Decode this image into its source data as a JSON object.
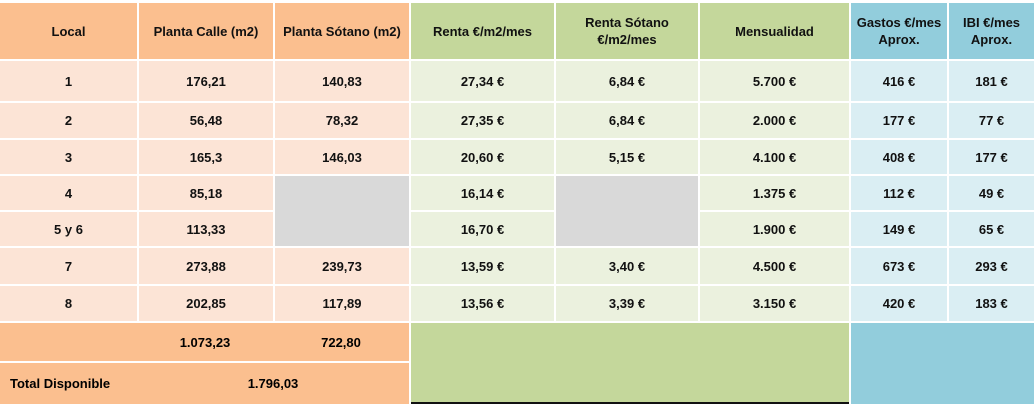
{
  "headers": [
    "Local",
    "Planta Calle (m2)",
    "Planta Sótano (m2)",
    "Renta €/m2/mes",
    "Renta Sótano €/m2/mes",
    "Mensualidad",
    "Gastos €/mes Aprox.",
    "IBI €/mes Aprox."
  ],
  "rows": [
    {
      "local": "1",
      "calle": "176,21",
      "sotano": "140,83",
      "renta": "27,34 €",
      "renta_sotano": "6,84 €",
      "mensualidad": "5.700 €",
      "gastos": "416 €",
      "ibi": "181 €"
    },
    {
      "local": "2",
      "calle": "56,48",
      "sotano": "78,32",
      "renta": "27,35 €",
      "renta_sotano": "6,84 €",
      "mensualidad": "2.000 €",
      "gastos": "177 €",
      "ibi": "77 €"
    },
    {
      "local": "3",
      "calle": "165,3",
      "sotano": "146,03",
      "renta": "20,60 €",
      "renta_sotano": "5,15 €",
      "mensualidad": "4.100 €",
      "gastos": "408 €",
      "ibi": "177 €"
    },
    {
      "local": "4",
      "calle": "85,18",
      "sotano": "",
      "renta": "16,14 €",
      "renta_sotano": "",
      "mensualidad": "1.375 €",
      "gastos": "112 €",
      "ibi": "49 €"
    },
    {
      "local": "5 y 6",
      "calle": "113,33",
      "sotano": "",
      "renta": "16,70 €",
      "renta_sotano": "",
      "mensualidad": "1.900 €",
      "gastos": "149 €",
      "ibi": "65 €"
    },
    {
      "local": "7",
      "calle": "273,88",
      "sotano": "239,73",
      "renta": "13,59 €",
      "renta_sotano": "3,40 €",
      "mensualidad": "4.500 €",
      "gastos": "673 €",
      "ibi": "293 €"
    },
    {
      "local": "8",
      "calle": "202,85",
      "sotano": "117,89",
      "renta": "13,56 €",
      "renta_sotano": "3,39 €",
      "mensualidad": "3.150 €",
      "gastos": "420 €",
      "ibi": "183 €"
    }
  ],
  "totals": {
    "calle": "1.073,23",
    "sotano": "722,80",
    "label": "Total Disponible",
    "disponible": "1.796,03"
  },
  "colors": {
    "orange_header": "#fbbf8f",
    "orange_light": "#fce4d6",
    "green_header": "#c4d79b",
    "green_light": "#ebf1de",
    "blue_header": "#92cddc",
    "blue_light": "#daeef3",
    "gray": "#d9d9d9"
  }
}
